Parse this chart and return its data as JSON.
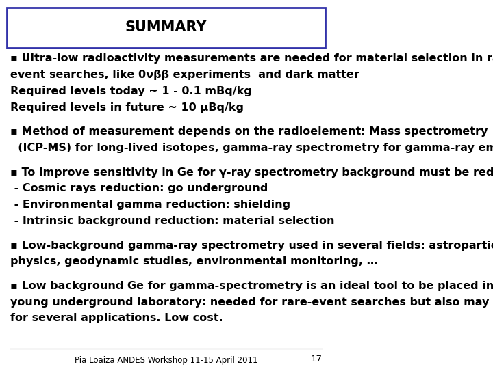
{
  "title": "SUMMARY",
  "title_box_color": "#3333aa",
  "background_color": "#ffffff",
  "text_color": "#000000",
  "footer_text": "Pia Loaiza ANDES Workshop 11-15 April 2011",
  "page_number": "17",
  "bullet_blocks": [
    {
      "bullet": "▪",
      "lines": [
        "Ultra-low radioactivity measurements are needed for material selection in rare",
        "event searches, like 0νββ experiments  and dark matter",
        "Required levels today ~ 1 - 0.1 mBq/kg",
        "Required levels in future ~ 10 μBq/kg"
      ]
    },
    {
      "bullet": "▪",
      "lines": [
        "Method of measurement depends on the radioelement: Mass spectrometry",
        "  (ICP-MS) for long-lived isotopes, gamma-ray spectrometry for gamma-ray emitters"
      ]
    },
    {
      "bullet": "▪",
      "lines": [
        "To improve sensitivity in Ge for γ-ray spectrometry background must be reduced:",
        " - Cosmic rays reduction: go underground",
        " - Environmental gamma reduction: shielding",
        " - Intrinsic background reduction: material selection"
      ]
    },
    {
      "bullet": "▪",
      "lines": [
        "Low-background gamma-ray spectrometry used in several fields: astroparticle",
        "physics, geodynamic studies, environmental monitoring, …"
      ]
    },
    {
      "bullet": "▪",
      "lines": [
        "Low background Ge for gamma-spectrometry is an ideal tool to be placed in a",
        "young underground laboratory: needed for rare-event searches but also may be used",
        "for several applications. Low cost."
      ]
    }
  ],
  "font_size": 11.5,
  "title_font_size": 15,
  "footer_font_size": 8.5
}
